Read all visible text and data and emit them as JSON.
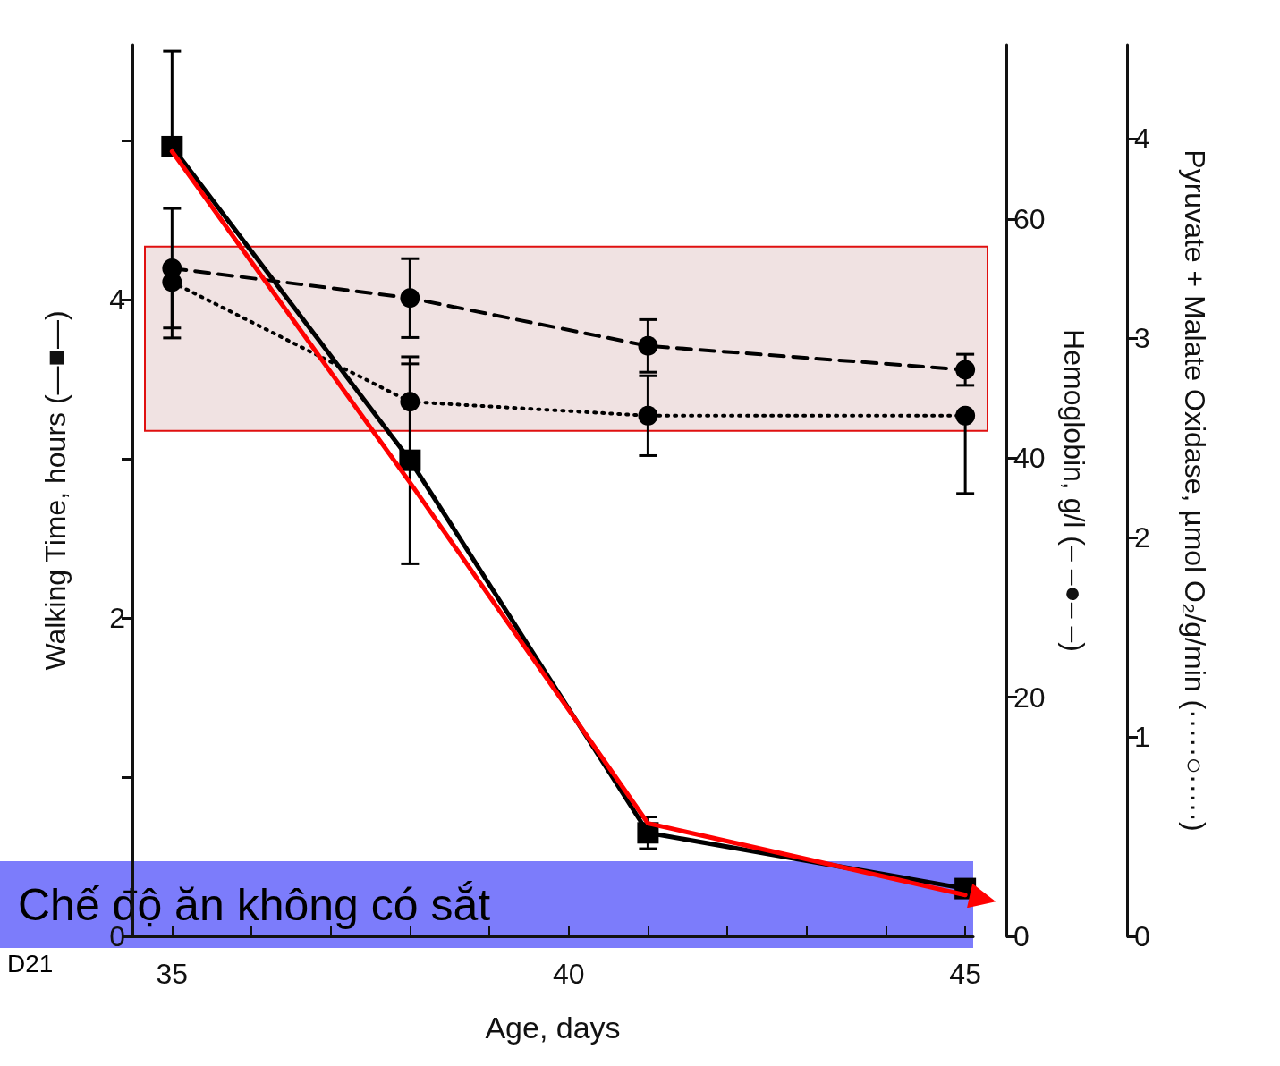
{
  "chart_data": {
    "type": "line",
    "xlabel": "Age, days",
    "ylabel": "Walking Time, hours (—■—)",
    "y2label": "Hemoglobin, g/l (– –●– –)",
    "y3label": "Pyruvate + Malate Oxidase, µmol O₂/g/min (·····○·····)",
    "annotations": [
      "Chế độ ăn không có sắt",
      "D21"
    ],
    "x": [
      35,
      38,
      41,
      45
    ],
    "xlim": [
      34.5,
      45.1
    ],
    "xticks": [
      35,
      {
        "value": 36,
        "label": null
      },
      {
        "value": 37,
        "label": null
      },
      {
        "value": 38,
        "label": null
      },
      {
        "value": 39,
        "label": null
      },
      40,
      {
        "value": 41,
        "label": null
      },
      {
        "value": 42,
        "label": null
      },
      {
        "value": 43,
        "label": null
      },
      {
        "value": 44,
        "label": null
      },
      45
    ],
    "ylim": [
      0,
      5.6
    ],
    "yticks": [
      0,
      {
        "value": 1,
        "label": null
      },
      2,
      {
        "value": 3,
        "label": null
      },
      4,
      {
        "value": 5,
        "label": null
      }
    ],
    "y2lim": [
      0,
      74.6
    ],
    "y2ticks": [
      0,
      20,
      40,
      60
    ],
    "y3lim": [
      0,
      4.47
    ],
    "y3ticks": [
      0,
      1,
      2,
      3,
      4
    ],
    "grid": false,
    "legend": false,
    "bands": [
      {
        "axis": "y2",
        "from": 42.3,
        "to": 57.7,
        "color": "#f0e2e2"
      }
    ],
    "series": [
      {
        "color": "#000000",
        "marker": "square",
        "line_style": "solid",
        "values": [
          4.96,
          2.99,
          0.65,
          0.3
        ],
        "errors": [
          [
            4.96,
            5.56
          ],
          0.65,
          0.1,
          null
        ]
      },
      {
        "color": "#000000",
        "marker": "circle",
        "line_style": "dashed",
        "axis": "y2",
        "values": [
          55.9,
          53.4,
          49.4,
          47.4
        ],
        "errors": [
          5,
          3.3,
          2.2,
          1.3
        ]
      },
      {
        "color": "#000000",
        "marker": "circle",
        "line_style": "dotted",
        "axis": "y3",
        "values": [
          3.28,
          2.68,
          2.61,
          2.61
        ],
        "errors": [
          [
            3.0,
            3.28
          ],
          [
            2.68,
            2.87
          ],
          0.2,
          [
            2.22,
            2.61
          ]
        ]
      },
      {
        "color": "#ff0000",
        "marker": "none",
        "line_style": "solid",
        "values": [
          4.93,
          2.85,
          0.71,
          0.26
        ]
      }
    ]
  }
}
